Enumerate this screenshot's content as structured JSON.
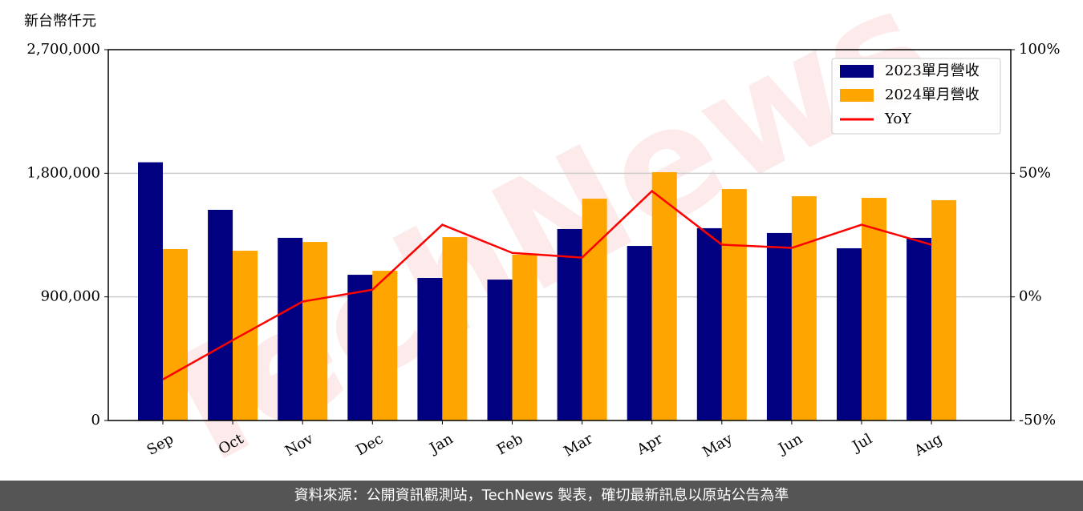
{
  "chart_data": {
    "type": "bar_line",
    "y_label": "新台幣仟元",
    "watermark": "TechNews",
    "footer": "資料來源：公開資訊觀測站，TechNews 製表，確切最新訊息以原站公告為準",
    "categories": [
      "Sep",
      "Oct",
      "Nov",
      "Dec",
      "Jan",
      "Feb",
      "Mar",
      "Apr",
      "May",
      "Jun",
      "Jul",
      "Aug"
    ],
    "series": [
      {
        "name": "2023單月營收",
        "color": "#000080",
        "kind": "bar",
        "values": [
          1880000,
          1534000,
          1330000,
          1061000,
          1038000,
          1026000,
          1394000,
          1271000,
          1400000,
          1365000,
          1254000,
          1330000
        ]
      },
      {
        "name": "2024單月營收",
        "color": "#ffa500",
        "kind": "bar",
        "values": [
          1248000,
          1236000,
          1300000,
          1090000,
          1335000,
          1207000,
          1615000,
          1808000,
          1685000,
          1633000,
          1621000,
          1604000
        ]
      },
      {
        "name": "YoY",
        "color": "#ff0000",
        "kind": "line",
        "axis": "y2",
        "values": [
          -33.4,
          -17.5,
          -1.9,
          2.9,
          29.2,
          17.8,
          15.9,
          42.8,
          21.1,
          19.8,
          29.2,
          21.1
        ]
      }
    ],
    "ylim": [
      0,
      2700000
    ],
    "yticks": [
      0,
      {
        "value": 900000,
        "label": "900,000"
      },
      {
        "value": 1800000,
        "label": "1,800,000"
      },
      {
        "value": 2700000,
        "label": "2,700,000"
      }
    ],
    "y2lim": [
      -50,
      100
    ],
    "y2ticks": [
      {
        "value": -50,
        "label": "-50%"
      },
      {
        "value": 0,
        "label": "0%"
      },
      {
        "value": 50,
        "label": "50%"
      },
      {
        "value": 100,
        "label": "100%"
      }
    ],
    "grid": true,
    "legend": "upper right"
  }
}
